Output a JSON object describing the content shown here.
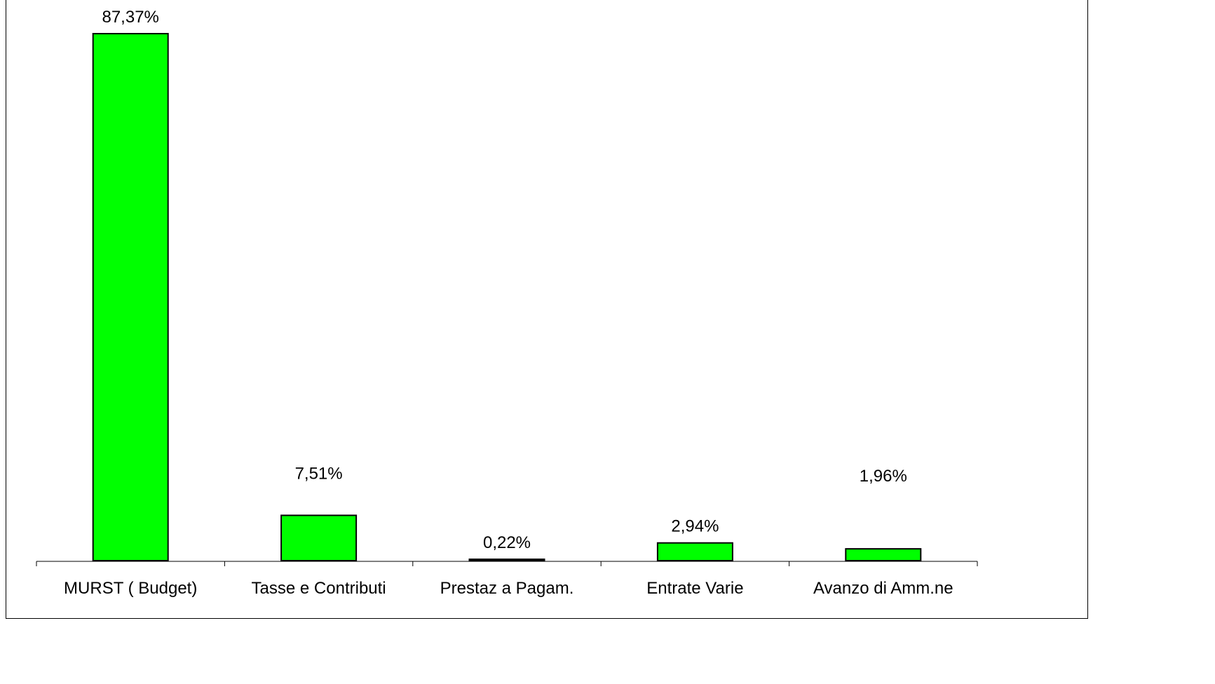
{
  "chart_data": {
    "type": "bar",
    "categories": [
      "MURST ( Budget)",
      "Tasse e Contributi",
      "Prestaz a Pagam.",
      "Entrate Varie",
      "Avanzo di Amm.ne"
    ],
    "values": [
      87.37,
      7.51,
      0.22,
      2.94,
      1.96
    ],
    "data_labels": [
      "87,37%",
      "7,51%",
      "0,22%",
      "2,94%",
      "1,96%"
    ],
    "title": "",
    "xlabel": "",
    "ylabel": "",
    "ylim": [
      0,
      87.37
    ],
    "grid": false,
    "legend": "none",
    "bar_color": "#00ff00",
    "bar_edge_color": "#000000"
  }
}
